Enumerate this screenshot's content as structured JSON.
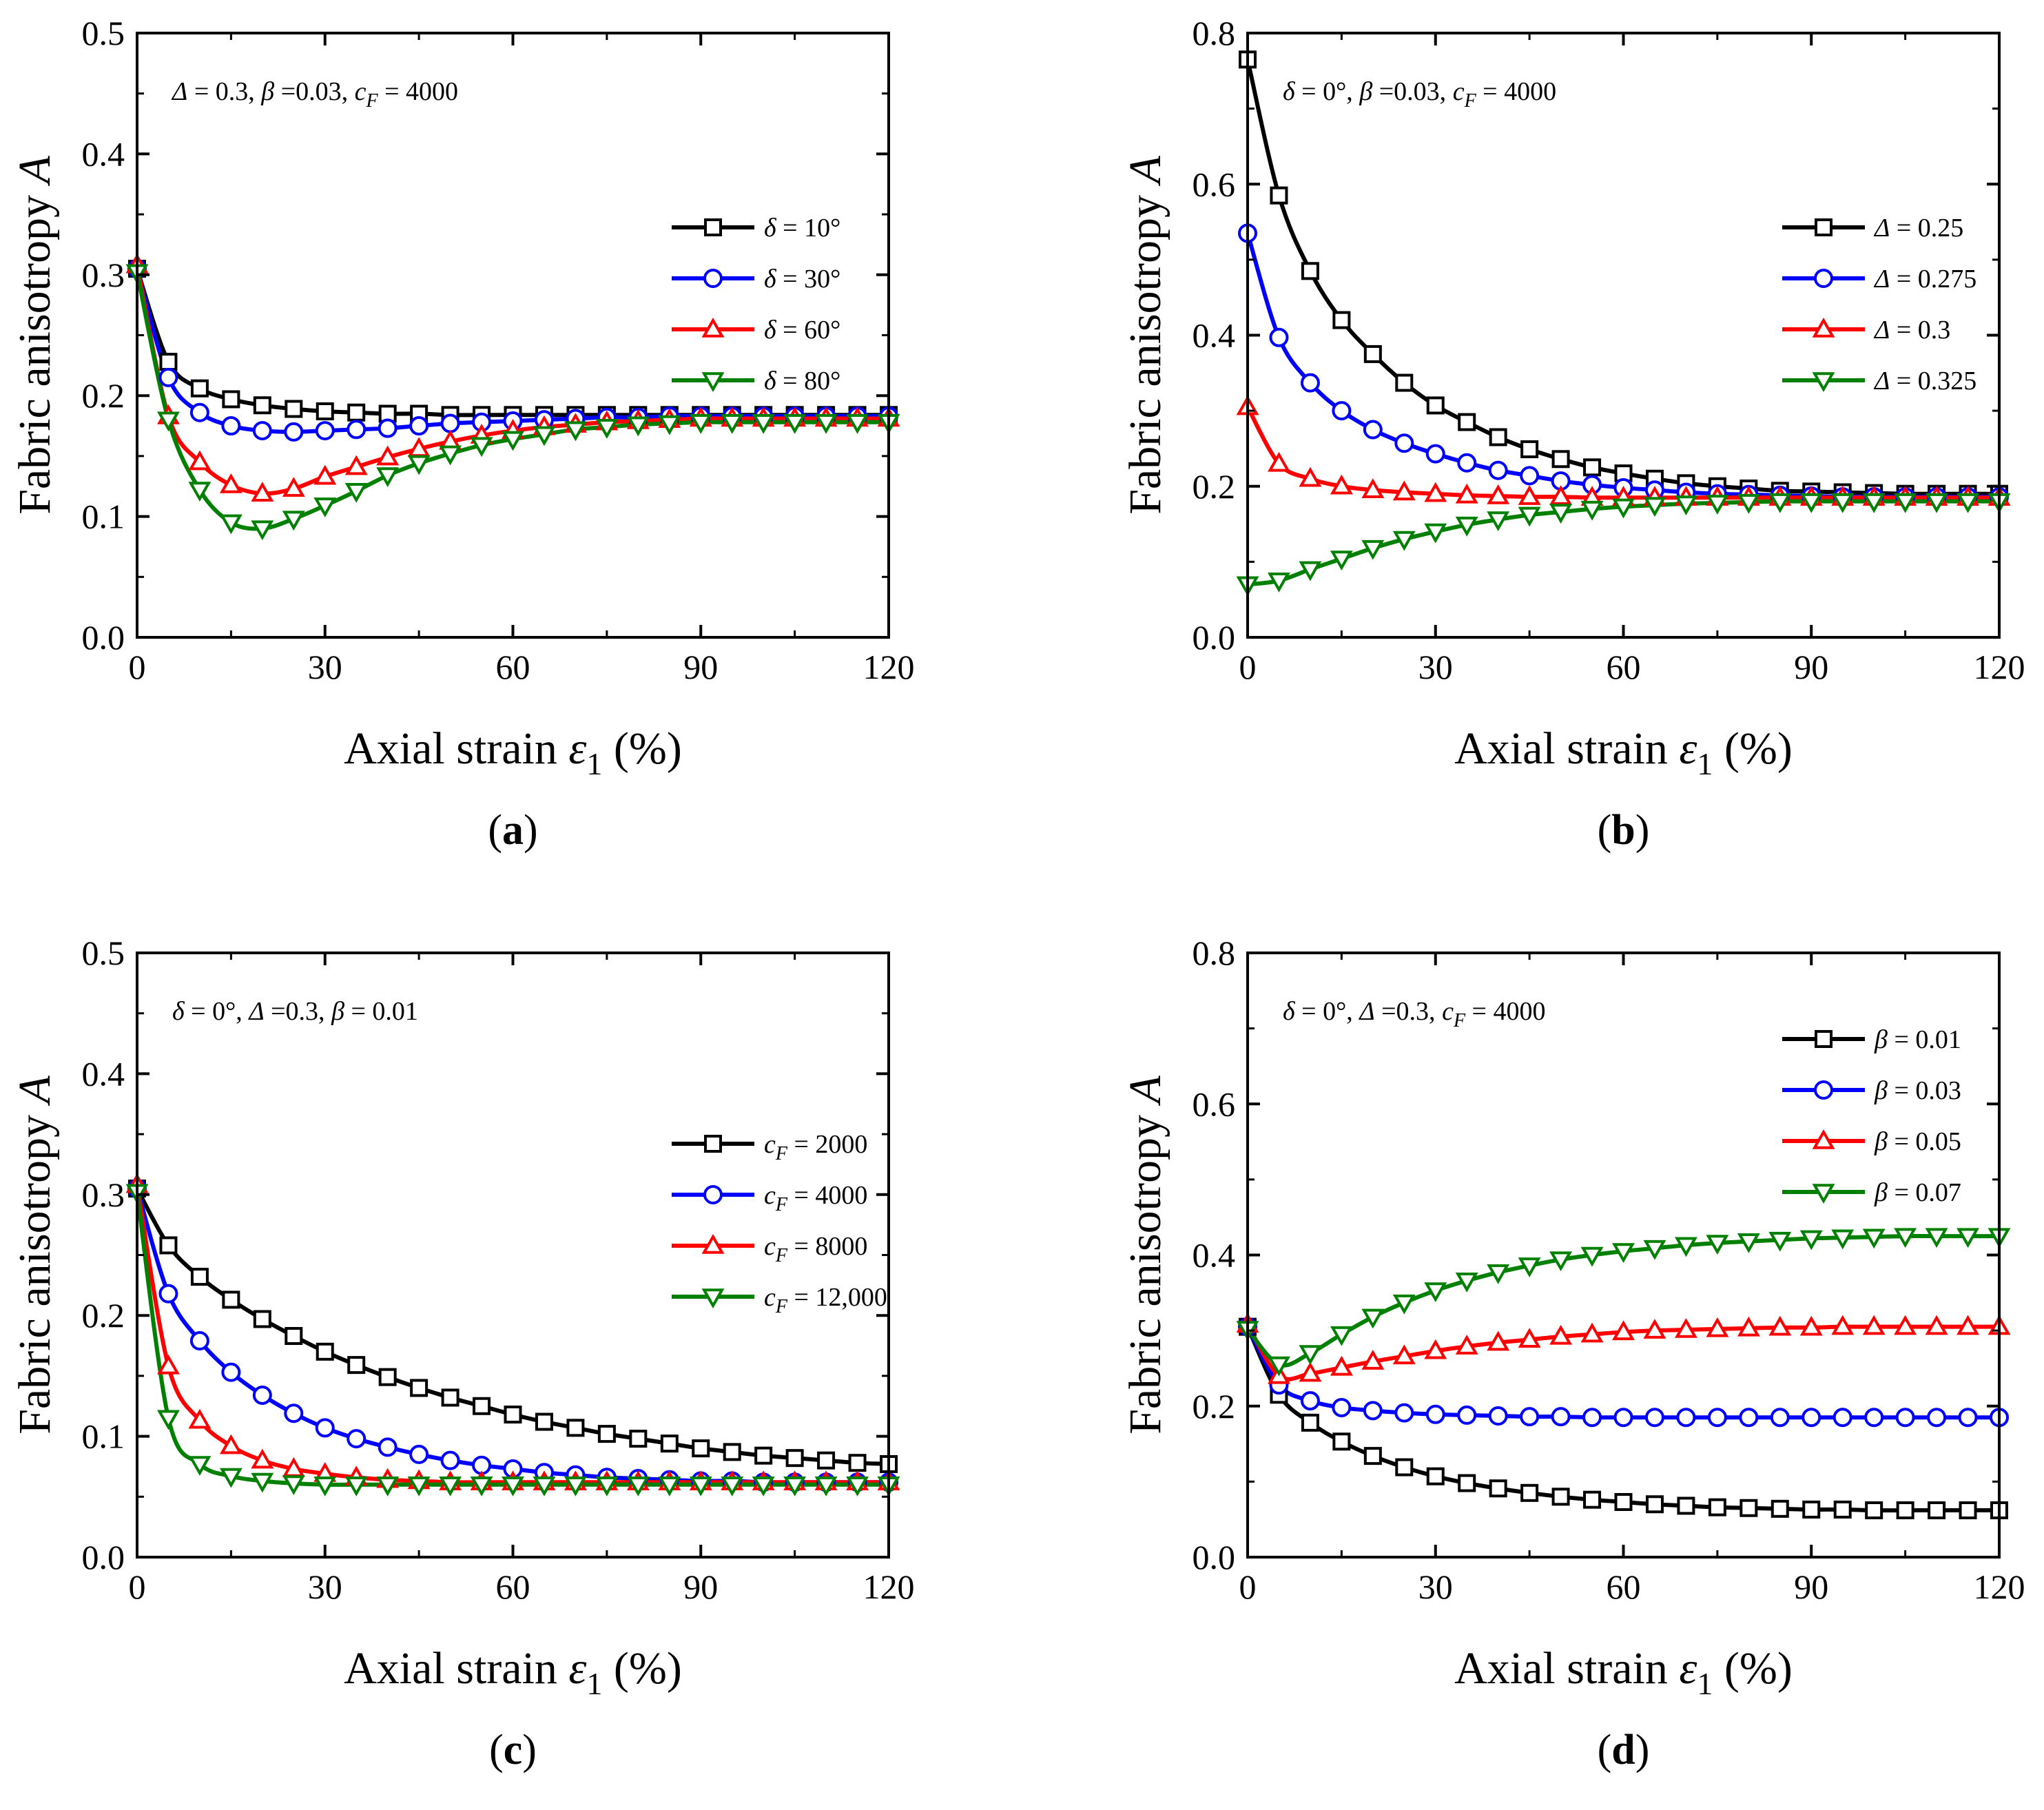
{
  "chart_data": [
    {
      "type": "line",
      "panel_label": "a",
      "annotation": {
        "parts": [
          "Δ",
          " = 0.3, ",
          "β",
          " =0.03, ",
          "c",
          "F",
          " = 4000"
        ]
      },
      "xlabel": {
        "main": "Axial strain ",
        "sym": "ε",
        "sub": "1",
        "tail": " (%)"
      },
      "ylabel": {
        "main": "Fabric anisotropy ",
        "sym": "A"
      },
      "xlim": [
        0,
        120
      ],
      "ylim": [
        0,
        0.5
      ],
      "xticks": [
        "0",
        "30",
        "60",
        "90",
        "120"
      ],
      "yticks": [
        "0.0",
        "0.1",
        "0.2",
        "0.3",
        "0.4",
        "0.5"
      ],
      "x": [
        0,
        5,
        10,
        15,
        20,
        25,
        30,
        35,
        40,
        45,
        50,
        55,
        60,
        65,
        70,
        75,
        80,
        85,
        90,
        95,
        100,
        105,
        110,
        115,
        120
      ],
      "legend_position": "middle-right",
      "series": [
        {
          "name": "δ = 10°",
          "legend": {
            "sym": "δ",
            "text": " = 10°"
          },
          "color": "#000000",
          "marker": "square",
          "values": [
            0.305,
            0.228,
            0.206,
            0.197,
            0.192,
            0.189,
            0.187,
            0.186,
            0.185,
            0.185,
            0.184,
            0.184,
            0.184,
            0.184,
            0.184,
            0.184,
            0.184,
            0.184,
            0.184,
            0.184,
            0.184,
            0.184,
            0.184,
            0.184,
            0.184
          ]
        },
        {
          "name": "δ = 30°",
          "legend": {
            "sym": "δ",
            "text": " = 30°"
          },
          "color": "#0000ff",
          "marker": "circle",
          "values": [
            0.305,
            0.215,
            0.186,
            0.175,
            0.171,
            0.17,
            0.171,
            0.172,
            0.173,
            0.175,
            0.177,
            0.178,
            0.179,
            0.18,
            0.181,
            0.182,
            0.182,
            0.183,
            0.183,
            0.183,
            0.183,
            0.183,
            0.183,
            0.183,
            0.183
          ]
        },
        {
          "name": "δ = 60°",
          "legend": {
            "sym": "δ",
            "text": " = 60°"
          },
          "color": "#ff0000",
          "marker": "triangle-up",
          "values": [
            0.308,
            0.183,
            0.145,
            0.126,
            0.119,
            0.123,
            0.133,
            0.141,
            0.149,
            0.156,
            0.162,
            0.167,
            0.171,
            0.174,
            0.176,
            0.178,
            0.179,
            0.18,
            0.181,
            0.181,
            0.181,
            0.181,
            0.181,
            0.181,
            0.181
          ]
        },
        {
          "name": "δ = 80°",
          "legend": {
            "sym": "δ",
            "text": " = 80°"
          },
          "color": "#008000",
          "marker": "triangle-down",
          "values": [
            0.302,
            0.18,
            0.122,
            0.095,
            0.09,
            0.098,
            0.109,
            0.121,
            0.134,
            0.144,
            0.152,
            0.159,
            0.164,
            0.168,
            0.172,
            0.174,
            0.176,
            0.177,
            0.178,
            0.178,
            0.178,
            0.178,
            0.178,
            0.178,
            0.178
          ]
        }
      ]
    },
    {
      "type": "line",
      "panel_label": "b",
      "annotation": {
        "parts": [
          "δ",
          " = 0°, ",
          "β",
          " =0.03, ",
          "c",
          "F",
          " = 4000"
        ]
      },
      "xlabel": {
        "main": "Axial strain ",
        "sym": "ε",
        "sub": "1",
        "tail": " (%)"
      },
      "ylabel": {
        "main": "Fabric anisotropy ",
        "sym": "A"
      },
      "xlim": [
        0,
        120
      ],
      "ylim": [
        0,
        0.8
      ],
      "xticks": [
        "0",
        "30",
        "60",
        "90",
        "120"
      ],
      "yticks": [
        "0.0",
        "0.2",
        "0.4",
        "0.6",
        "0.8"
      ],
      "x": [
        0,
        5,
        10,
        15,
        20,
        25,
        30,
        35,
        40,
        45,
        50,
        55,
        60,
        65,
        70,
        75,
        80,
        85,
        90,
        95,
        100,
        105,
        110,
        115,
        120
      ],
      "legend_position": "middle-right",
      "series": [
        {
          "name": "Δ = 0.25",
          "legend": {
            "sym": "Δ",
            "text": " = 0.25"
          },
          "color": "#000000",
          "marker": "square",
          "values": [
            0.765,
            0.585,
            0.485,
            0.42,
            0.375,
            0.337,
            0.307,
            0.285,
            0.265,
            0.249,
            0.236,
            0.225,
            0.217,
            0.21,
            0.204,
            0.2,
            0.197,
            0.194,
            0.193,
            0.192,
            0.191,
            0.19,
            0.19,
            0.19,
            0.19
          ]
        },
        {
          "name": "Δ = 0.275",
          "legend": {
            "sym": "Δ",
            "text": " = 0.275"
          },
          "color": "#0000ff",
          "marker": "circle",
          "values": [
            0.535,
            0.397,
            0.337,
            0.3,
            0.275,
            0.257,
            0.243,
            0.231,
            0.221,
            0.214,
            0.207,
            0.202,
            0.198,
            0.195,
            0.192,
            0.19,
            0.189,
            0.188,
            0.187,
            0.186,
            0.186,
            0.186,
            0.186,
            0.186,
            0.186
          ]
        },
        {
          "name": "Δ = 0.3",
          "legend": {
            "sym": "Δ",
            "text": " = 0.3"
          },
          "color": "#ff0000",
          "marker": "triangle-up",
          "values": [
            0.305,
            0.23,
            0.21,
            0.2,
            0.195,
            0.192,
            0.19,
            0.188,
            0.187,
            0.186,
            0.186,
            0.185,
            0.185,
            0.185,
            0.185,
            0.185,
            0.185,
            0.185,
            0.185,
            0.185,
            0.185,
            0.185,
            0.185,
            0.185,
            0.185
          ]
        },
        {
          "name": "Δ = 0.325",
          "legend": {
            "sym": "Δ",
            "text": " = 0.325"
          },
          "color": "#008000",
          "marker": "triangle-down",
          "values": [
            0.07,
            0.075,
            0.09,
            0.104,
            0.118,
            0.13,
            0.14,
            0.149,
            0.156,
            0.162,
            0.166,
            0.17,
            0.173,
            0.175,
            0.177,
            0.178,
            0.179,
            0.18,
            0.18,
            0.18,
            0.18,
            0.18,
            0.18,
            0.18,
            0.18
          ]
        }
      ]
    },
    {
      "type": "line",
      "panel_label": "c",
      "annotation": {
        "parts": [
          "δ",
          " = 0°, ",
          "Δ",
          " =0.3, ",
          "β",
          " = 0.01"
        ]
      },
      "xlabel": {
        "main": "Axial strain ",
        "sym": "ε",
        "sub": "1",
        "tail": " (%)"
      },
      "ylabel": {
        "main": "Fabric anisotropy ",
        "sym": "A"
      },
      "xlim": [
        0,
        120
      ],
      "ylim": [
        0,
        0.5
      ],
      "xticks": [
        "0",
        "30",
        "60",
        "90",
        "120"
      ],
      "yticks": [
        "0.0",
        "0.1",
        "0.2",
        "0.3",
        "0.4",
        "0.5"
      ],
      "x": [
        0,
        5,
        10,
        15,
        20,
        25,
        30,
        35,
        40,
        45,
        50,
        55,
        60,
        65,
        70,
        75,
        80,
        85,
        90,
        95,
        100,
        105,
        110,
        115,
        120
      ],
      "legend_position": "middle-right",
      "series": [
        {
          "name": "cF = 2000",
          "legend": {
            "c": "c",
            "sub": "F",
            "text": " = 2000"
          },
          "color": "#000000",
          "marker": "square",
          "values": [
            0.305,
            0.258,
            0.232,
            0.213,
            0.197,
            0.183,
            0.17,
            0.159,
            0.149,
            0.14,
            0.132,
            0.125,
            0.118,
            0.112,
            0.107,
            0.102,
            0.098,
            0.094,
            0.09,
            0.087,
            0.084,
            0.082,
            0.08,
            0.078,
            0.077
          ]
        },
        {
          "name": "cF = 4000",
          "legend": {
            "c": "c",
            "sub": "F",
            "text": " = 4000"
          },
          "color": "#0000ff",
          "marker": "circle",
          "values": [
            0.305,
            0.218,
            0.179,
            0.153,
            0.134,
            0.119,
            0.107,
            0.098,
            0.091,
            0.085,
            0.08,
            0.076,
            0.073,
            0.07,
            0.068,
            0.066,
            0.065,
            0.064,
            0.063,
            0.063,
            0.062,
            0.062,
            0.062,
            0.062,
            0.062
          ]
        },
        {
          "name": "cF = 8000",
          "legend": {
            "c": "c",
            "sub": "F",
            "text": " = 8000"
          },
          "color": "#ff0000",
          "marker": "triangle-up",
          "values": [
            0.308,
            0.158,
            0.113,
            0.092,
            0.08,
            0.073,
            0.069,
            0.066,
            0.064,
            0.063,
            0.062,
            0.062,
            0.062,
            0.062,
            0.062,
            0.062,
            0.062,
            0.062,
            0.062,
            0.062,
            0.062,
            0.062,
            0.062,
            0.062,
            0.062
          ]
        },
        {
          "name": "cF = 12,000",
          "legend": {
            "c": "c",
            "sub": "F",
            "text": " = 12,000"
          },
          "color": "#008000",
          "marker": "triangle-down",
          "values": [
            0.302,
            0.115,
            0.077,
            0.067,
            0.063,
            0.061,
            0.06,
            0.06,
            0.06,
            0.06,
            0.06,
            0.06,
            0.06,
            0.06,
            0.06,
            0.06,
            0.06,
            0.06,
            0.06,
            0.06,
            0.06,
            0.06,
            0.06,
            0.06,
            0.06
          ]
        }
      ]
    },
    {
      "type": "line",
      "panel_label": "d",
      "annotation": {
        "parts": [
          "δ",
          " = 0°, ",
          "Δ",
          " =0.3, ",
          "c",
          "F",
          " = 4000"
        ]
      },
      "xlabel": {
        "main": "Axial strain ",
        "sym": "ε",
        "sub": "1",
        "tail": " (%)"
      },
      "ylabel": {
        "main": "Fabric anisotropy ",
        "sym": "A"
      },
      "xlim": [
        0,
        120
      ],
      "ylim": [
        0,
        0.8
      ],
      "xticks": [
        "0",
        "30",
        "60",
        "90",
        "120"
      ],
      "yticks": [
        "0.0",
        "0.2",
        "0.4",
        "0.6",
        "0.8"
      ],
      "x": [
        0,
        5,
        10,
        15,
        20,
        25,
        30,
        35,
        40,
        45,
        50,
        55,
        60,
        65,
        70,
        75,
        80,
        85,
        90,
        95,
        100,
        105,
        110,
        115,
        120
      ],
      "legend_position": "top-right",
      "series": [
        {
          "name": "β = 0.01",
          "legend": {
            "sym": "β",
            "text": " = 0.01"
          },
          "color": "#000000",
          "marker": "square",
          "values": [
            0.305,
            0.215,
            0.178,
            0.153,
            0.134,
            0.119,
            0.107,
            0.098,
            0.091,
            0.085,
            0.08,
            0.076,
            0.073,
            0.07,
            0.068,
            0.066,
            0.065,
            0.064,
            0.063,
            0.063,
            0.062,
            0.062,
            0.062,
            0.062,
            0.062
          ]
        },
        {
          "name": "β = 0.03",
          "legend": {
            "sym": "β",
            "text": " = 0.03"
          },
          "color": "#0000ff",
          "marker": "circle",
          "values": [
            0.305,
            0.228,
            0.207,
            0.198,
            0.194,
            0.191,
            0.189,
            0.188,
            0.187,
            0.186,
            0.186,
            0.185,
            0.185,
            0.185,
            0.185,
            0.185,
            0.185,
            0.185,
            0.185,
            0.185,
            0.185,
            0.185,
            0.185,
            0.185,
            0.185
          ]
        },
        {
          "name": "β = 0.05",
          "legend": {
            "sym": "β",
            "text": " = 0.05"
          },
          "color": "#ff0000",
          "marker": "triangle-up",
          "values": [
            0.308,
            0.24,
            0.243,
            0.251,
            0.259,
            0.266,
            0.273,
            0.279,
            0.284,
            0.288,
            0.292,
            0.295,
            0.298,
            0.3,
            0.301,
            0.302,
            0.303,
            0.304,
            0.304,
            0.305,
            0.305,
            0.305,
            0.305,
            0.305,
            0.305
          ]
        },
        {
          "name": "β = 0.07",
          "legend": {
            "sym": "β",
            "text": " = 0.07"
          },
          "color": "#008000",
          "marker": "triangle-down",
          "values": [
            0.302,
            0.255,
            0.27,
            0.295,
            0.318,
            0.337,
            0.353,
            0.366,
            0.377,
            0.386,
            0.394,
            0.4,
            0.405,
            0.409,
            0.413,
            0.416,
            0.418,
            0.42,
            0.422,
            0.423,
            0.424,
            0.425,
            0.425,
            0.425,
            0.425
          ]
        }
      ]
    }
  ]
}
